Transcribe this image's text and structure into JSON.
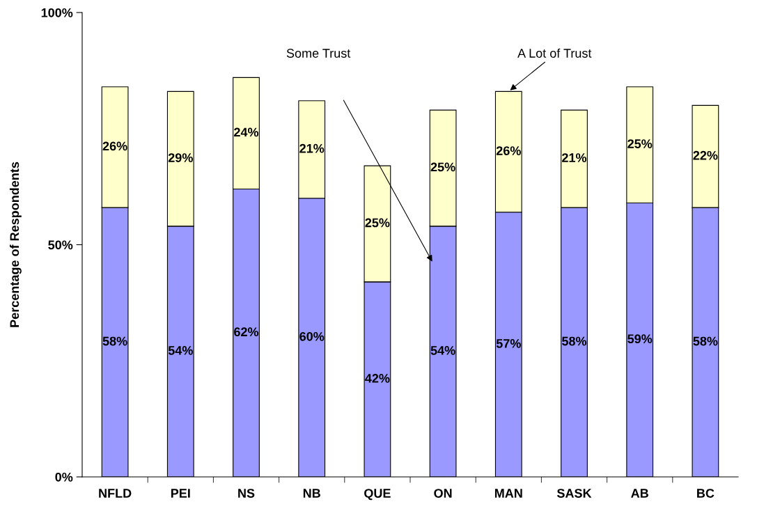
{
  "chart_data": {
    "type": "bar",
    "stacked": true,
    "ylabel": "Percentage of Respondents",
    "categories": [
      "NFLD",
      "PEI",
      "NS",
      "NB",
      "QUE",
      "ON",
      "MAN",
      "SASK",
      "AB",
      "BC"
    ],
    "series": [
      {
        "color": "#9999ff",
        "values": [
          58,
          54,
          62,
          60,
          42,
          54,
          57,
          58,
          59,
          58
        ],
        "value_labels": [
          "58%",
          "54%",
          "62%",
          "60%",
          "42%",
          "54%",
          "57%",
          "58%",
          "59%",
          "58%"
        ]
      },
      {
        "color": "#ffffcc",
        "values": [
          26,
          29,
          24,
          21,
          25,
          25,
          26,
          21,
          25,
          22
        ],
        "value_labels": [
          "26%",
          "29%",
          "24%",
          "21%",
          "25%",
          "25%",
          "26%",
          "21%",
          "25%",
          "22%"
        ]
      }
    ],
    "ylim": [
      0,
      100
    ],
    "yticks": [
      {
        "value": 0,
        "label": "0%"
      },
      {
        "value": 50,
        "label": "50%"
      },
      {
        "value": 100,
        "label": "100%"
      }
    ],
    "grid": false,
    "legend": false,
    "annotations": [
      "Some Trust",
      {
        "text": "A Lot of Trust",
        "x": "MAN",
        "y": 83
      }
    ]
  }
}
